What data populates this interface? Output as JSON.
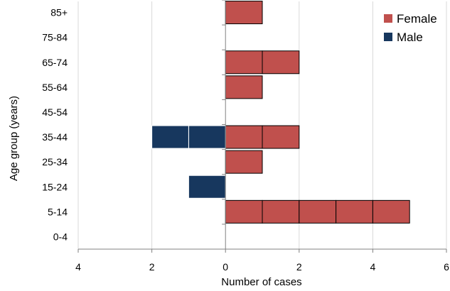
{
  "chart_data": {
    "type": "bar",
    "orientation": "horizontal",
    "style": "stacked unit-box pyramid (one box per case)",
    "categories": [
      "0-4",
      "5-14",
      "15-24",
      "25-34",
      "35-44",
      "45-54",
      "55-64",
      "65-74",
      "75-84",
      "85+"
    ],
    "series": [
      {
        "name": "Female",
        "direction": "right",
        "values": [
          0,
          5,
          0,
          1,
          2,
          0,
          1,
          2,
          0,
          1
        ]
      },
      {
        "name": "Male",
        "direction": "left",
        "values": [
          0,
          0,
          1,
          0,
          2,
          0,
          0,
          0,
          0,
          0
        ]
      }
    ],
    "xlabel": "Number of cases",
    "ylabel": "Age group (years)",
    "xlim": [
      -4,
      6
    ],
    "xticks": [
      -4,
      -2,
      0,
      2,
      4,
      6
    ],
    "xtick_labels": [
      "4",
      "2",
      "0",
      "2",
      "4",
      "6"
    ],
    "grid": "vertical gridlines",
    "legend_position": "top-right",
    "colors": {
      "Female": "#c0504d",
      "Male": "#17375e"
    }
  }
}
